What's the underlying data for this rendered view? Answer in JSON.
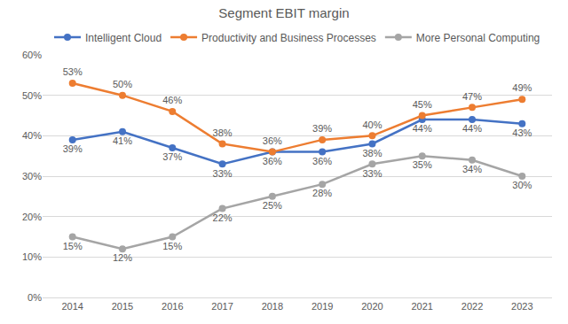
{
  "chart_data": {
    "type": "line",
    "title": "Segment EBIT margin",
    "categories": [
      "2014",
      "2015",
      "2016",
      "2017",
      "2018",
      "2019",
      "2020",
      "2021",
      "2022",
      "2023"
    ],
    "series": [
      {
        "name": "Intelligent Cloud",
        "color": "#4472c4",
        "values": [
          39,
          41,
          37,
          33,
          36,
          36,
          38,
          44,
          44,
          43
        ],
        "value_labels": [
          "39%",
          "41%",
          "37%",
          "33%",
          "36%",
          "36%",
          "38%",
          "44%",
          "44%",
          "43%"
        ]
      },
      {
        "name": "Productivity and Business Processes",
        "color": "#ed7d31",
        "values": [
          53,
          50,
          46,
          38,
          36,
          39,
          40,
          45,
          47,
          49
        ],
        "value_labels": [
          "53%",
          "50%",
          "46%",
          "38%",
          "36%",
          "39%",
          "40%",
          "45%",
          "47%",
          "49%"
        ]
      },
      {
        "name": "More Personal Computing",
        "color": "#a5a5a5",
        "values": [
          15,
          12,
          15,
          22,
          25,
          28,
          33,
          35,
          34,
          30
        ],
        "value_labels": [
          "15%",
          "12%",
          "15%",
          "22%",
          "25%",
          "28%",
          "33%",
          "35%",
          "34%",
          "30%"
        ]
      }
    ],
    "ylim": [
      0,
      60
    ],
    "yticks": [
      {
        "value": 0,
        "label": "0%"
      },
      {
        "value": 10,
        "label": "10%"
      },
      {
        "value": 20,
        "label": "20%"
      },
      {
        "value": 30,
        "label": "30%"
      },
      {
        "value": 40,
        "label": "40%"
      },
      {
        "value": 50,
        "label": "50%"
      },
      {
        "value": 60,
        "label": "60%"
      }
    ],
    "grid": true,
    "legend": "top",
    "data_labels": true,
    "marker": "circle",
    "line_style": "solid"
  }
}
